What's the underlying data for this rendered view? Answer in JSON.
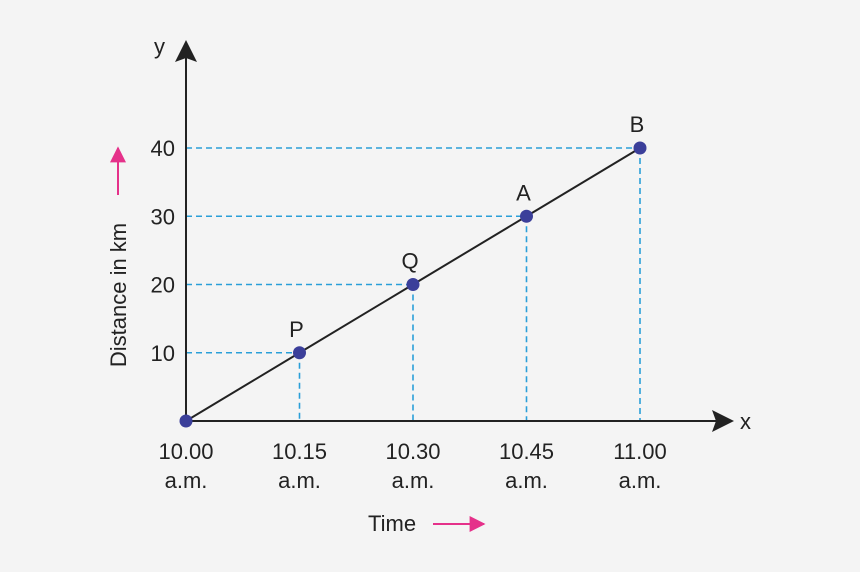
{
  "chart_data": {
    "type": "line",
    "title": "",
    "xlabel": "Time",
    "ylabel": "Distance in km",
    "x_axis_letter": "x",
    "y_axis_letter": "y",
    "x_ticks": [
      {
        "top": "10.00",
        "bottom": "a.m."
      },
      {
        "top": "10.15",
        "bottom": "a.m."
      },
      {
        "top": "10.30",
        "bottom": "a.m."
      },
      {
        "top": "10.45",
        "bottom": "a.m."
      },
      {
        "top": "11.00",
        "bottom": "a.m."
      }
    ],
    "y_ticks": [
      "10",
      "20",
      "30",
      "40"
    ],
    "ylim": [
      0,
      40
    ],
    "points": [
      {
        "label": "",
        "x": "10.00 a.m.",
        "y": 0
      },
      {
        "label": "P",
        "x": "10.15 a.m.",
        "y": 10
      },
      {
        "label": "Q",
        "x": "10.30 a.m.",
        "y": 20
      },
      {
        "label": "A",
        "x": "10.45 a.m.",
        "y": 30
      },
      {
        "label": "B",
        "x": "11.00 a.m.",
        "y": 40
      }
    ],
    "grid": false,
    "colors": {
      "line": "#222222",
      "point": "#3b3f9a",
      "guide": "#2a9fd8",
      "axis": "#222222",
      "arrow": "#e5318a"
    }
  }
}
